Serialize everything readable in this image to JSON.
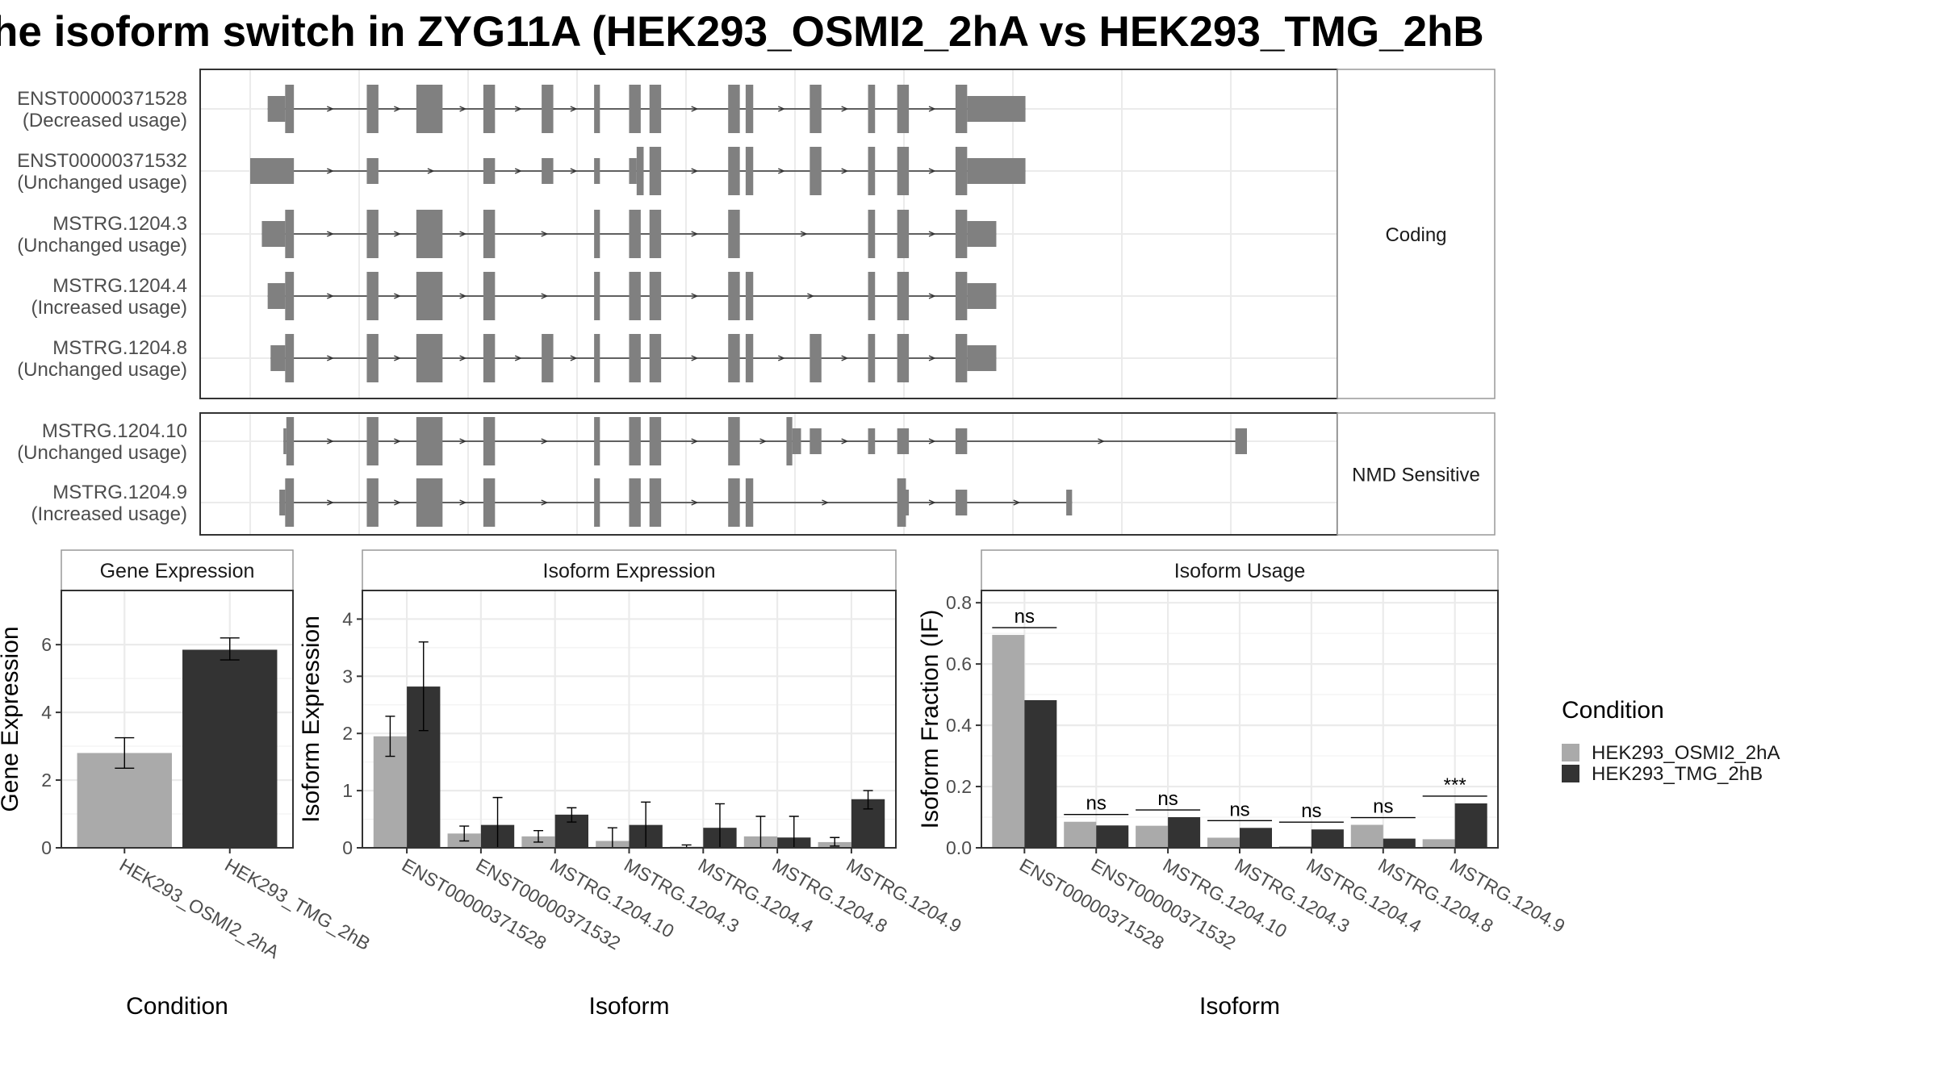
{
  "title": "he isoform switch in ZYG11A (HEK293_OSMI2_2hA vs HEK293_TMG_2hB",
  "colors": {
    "exon": "#808080",
    "intron": "#333333",
    "condA": "#aaaaaa",
    "condB": "#333333",
    "grid": "#ebebeb",
    "panel_border": "#333333",
    "strip_border": "#999999",
    "text": "#4d4d4d",
    "title": "#000000"
  },
  "structure": {
    "genomic_units": {
      "min": 0,
      "max": 180
    },
    "sections": [
      {
        "label": "Coding",
        "transcripts": [
          {
            "id": "ENST00000371528",
            "usage": "(Decreased usage)",
            "exons": [
              [
                3,
                6,
                "u"
              ],
              [
                6,
                7.5,
                "c"
              ],
              [
                20,
                22,
                "c"
              ],
              [
                28.5,
                33,
                "c"
              ],
              [
                40,
                42,
                "c"
              ],
              [
                50,
                52,
                "c"
              ],
              [
                59,
                60,
                "c"
              ],
              [
                65,
                67,
                "c"
              ],
              [
                68.5,
                70.5,
                "c"
              ],
              [
                82,
                84,
                "c"
              ],
              [
                85,
                86.3,
                "c"
              ],
              [
                96,
                98,
                "c"
              ],
              [
                106,
                107.2,
                "c"
              ],
              [
                111,
                113,
                "c"
              ],
              [
                121,
                123,
                "c"
              ],
              [
                123,
                133,
                "u"
              ]
            ]
          },
          {
            "id": "ENST00000371532",
            "usage": "(Unchanged usage)",
            "exons": [
              [
                0,
                7.5,
                "u"
              ],
              [
                20,
                22,
                "u"
              ],
              [
                40,
                42,
                "u"
              ],
              [
                50,
                52,
                "u"
              ],
              [
                59,
                60,
                "u"
              ],
              [
                65,
                66.3,
                "u"
              ],
              [
                66.3,
                67.5,
                "c"
              ],
              [
                68.5,
                70.5,
                "c"
              ],
              [
                82,
                84,
                "c"
              ],
              [
                85,
                86.3,
                "c"
              ],
              [
                96,
                98,
                "c"
              ],
              [
                106,
                107.2,
                "c"
              ],
              [
                111,
                113,
                "c"
              ],
              [
                121,
                123,
                "c"
              ],
              [
                123,
                133,
                "u"
              ]
            ]
          },
          {
            "id": "MSTRG.1204.3",
            "usage": "(Unchanged usage)",
            "exons": [
              [
                2,
                6,
                "u"
              ],
              [
                6,
                7.5,
                "c"
              ],
              [
                20,
                22,
                "c"
              ],
              [
                28.5,
                33,
                "c"
              ],
              [
                40,
                42,
                "c"
              ],
              [
                59,
                60,
                "c"
              ],
              [
                65,
                67,
                "c"
              ],
              [
                68.5,
                70.5,
                "c"
              ],
              [
                82,
                84,
                "c"
              ],
              [
                106,
                107.2,
                "c"
              ],
              [
                111,
                113,
                "c"
              ],
              [
                121,
                123,
                "c"
              ],
              [
                123,
                128,
                "u"
              ]
            ]
          },
          {
            "id": "MSTRG.1204.4",
            "usage": "(Increased usage)",
            "exons": [
              [
                3,
                6,
                "u"
              ],
              [
                6,
                7.5,
                "c"
              ],
              [
                20,
                22,
                "c"
              ],
              [
                28.5,
                33,
                "c"
              ],
              [
                40,
                42,
                "c"
              ],
              [
                59,
                60,
                "c"
              ],
              [
                65,
                67,
                "c"
              ],
              [
                68.5,
                70.5,
                "c"
              ],
              [
                82,
                84,
                "c"
              ],
              [
                85,
                86.3,
                "c"
              ],
              [
                106,
                107.2,
                "c"
              ],
              [
                111,
                113,
                "c"
              ],
              [
                121,
                123,
                "c"
              ],
              [
                123,
                128,
                "u"
              ]
            ]
          },
          {
            "id": "MSTRG.1204.8",
            "usage": "(Unchanged usage)",
            "exons": [
              [
                3.5,
                6,
                "u"
              ],
              [
                6,
                7.5,
                "c"
              ],
              [
                20,
                22,
                "c"
              ],
              [
                28.5,
                33,
                "c"
              ],
              [
                40,
                42,
                "c"
              ],
              [
                50,
                52,
                "c"
              ],
              [
                59,
                60,
                "c"
              ],
              [
                65,
                67,
                "c"
              ],
              [
                68.5,
                70.5,
                "c"
              ],
              [
                82,
                84,
                "c"
              ],
              [
                85,
                86.3,
                "c"
              ],
              [
                96,
                98,
                "c"
              ],
              [
                106,
                107.2,
                "c"
              ],
              [
                111,
                113,
                "c"
              ],
              [
                121,
                123,
                "c"
              ],
              [
                123,
                128,
                "u"
              ]
            ]
          }
        ]
      },
      {
        "label": "NMD Sensitive",
        "transcripts": [
          {
            "id": "MSTRG.1204.10",
            "usage": "(Unchanged usage)",
            "exons": [
              [
                5.7,
                6.2,
                "u"
              ],
              [
                6.2,
                7.5,
                "c"
              ],
              [
                20,
                22,
                "c"
              ],
              [
                28.5,
                33,
                "c"
              ],
              [
                40,
                42,
                "c"
              ],
              [
                59,
                60,
                "c"
              ],
              [
                65,
                67,
                "c"
              ],
              [
                68.5,
                70.5,
                "c"
              ],
              [
                82,
                84,
                "c"
              ],
              [
                92,
                93,
                "c"
              ],
              [
                93,
                94.5,
                "u"
              ],
              [
                96,
                98,
                "u"
              ],
              [
                106,
                107.2,
                "u"
              ],
              [
                111,
                113,
                "u"
              ],
              [
                121,
                123,
                "u"
              ],
              [
                169,
                171,
                "u"
              ]
            ]
          },
          {
            "id": "MSTRG.1204.9",
            "usage": "(Increased usage)",
            "exons": [
              [
                5,
                6,
                "u"
              ],
              [
                6,
                7.5,
                "c"
              ],
              [
                20,
                22,
                "c"
              ],
              [
                28.5,
                33,
                "c"
              ],
              [
                40,
                42,
                "c"
              ],
              [
                59,
                60,
                "c"
              ],
              [
                65,
                67,
                "c"
              ],
              [
                68.5,
                70.5,
                "c"
              ],
              [
                82,
                84,
                "c"
              ],
              [
                85,
                86.3,
                "c"
              ],
              [
                111,
                112.5,
                "c"
              ],
              [
                112.5,
                113,
                "u"
              ],
              [
                121,
                123,
                "u"
              ],
              [
                140,
                141,
                "u"
              ]
            ]
          }
        ]
      }
    ]
  },
  "legend": {
    "title": "Condition",
    "entries": [
      "HEK293_OSMI2_2hA",
      "HEK293_TMG_2hB"
    ]
  },
  "chart_data": [
    {
      "type": "bar",
      "title": "Gene Expression",
      "xlabel": "Condition",
      "ylabel": "Gene Expression",
      "ylim": [
        0,
        7.6
      ],
      "yticks": [
        0,
        2,
        4,
        6
      ],
      "categories": [
        "HEK293_OSMI2_2hA",
        "HEK293_TMG_2hB"
      ],
      "values": [
        2.8,
        5.85
      ],
      "errors": [
        [
          2.35,
          3.25
        ],
        [
          5.55,
          6.2
        ]
      ]
    },
    {
      "type": "bar",
      "title": "Isoform Expression",
      "xlabel": "Isoform",
      "ylabel": "Isoform Expression",
      "ylim": [
        0,
        4.5
      ],
      "yticks": [
        0,
        1,
        2,
        3,
        4
      ],
      "categories": [
        "ENST00000371528",
        "ENST00000371532",
        "MSTRG.1204.10",
        "MSTRG.1204.3",
        "MSTRG.1204.4",
        "MSTRG.1204.8",
        "MSTRG.1204.9"
      ],
      "series": [
        {
          "name": "HEK293_OSMI2_2hA",
          "values": [
            1.95,
            0.25,
            0.2,
            0.12,
            0.02,
            0.2,
            0.1
          ],
          "errors": [
            [
              1.6,
              2.3
            ],
            [
              0.12,
              0.38
            ],
            [
              0.1,
              0.3
            ],
            [
              0.0,
              0.35
            ],
            [
              0.0,
              0.05
            ],
            [
              0.0,
              0.55
            ],
            [
              0.03,
              0.18
            ]
          ]
        },
        {
          "name": "HEK293_TMG_2hB",
          "values": [
            2.82,
            0.4,
            0.58,
            0.4,
            0.35,
            0.18,
            0.85
          ],
          "errors": [
            [
              2.05,
              3.6
            ],
            [
              0.0,
              0.88
            ],
            [
              0.45,
              0.7
            ],
            [
              0.0,
              0.8
            ],
            [
              0.0,
              0.77
            ],
            [
              0.0,
              0.55
            ],
            [
              0.68,
              1.0
            ]
          ]
        }
      ]
    },
    {
      "type": "bar",
      "title": "Isoform Usage",
      "xlabel": "Isoform",
      "ylabel": "Isoform Fraction (IF)",
      "ylim": [
        0,
        0.84
      ],
      "yticks": [
        "0.0",
        "0.2",
        "0.4",
        "0.6",
        "0.8"
      ],
      "categories": [
        "ENST00000371528",
        "ENST00000371532",
        "MSTRG.1204.10",
        "MSTRG.1204.3",
        "MSTRG.1204.4",
        "MSTRG.1204.8",
        "MSTRG.1204.9"
      ],
      "series": [
        {
          "name": "HEK293_OSMI2_2hA",
          "values": [
            0.695,
            0.085,
            0.072,
            0.033,
            0.005,
            0.075,
            0.028
          ]
        },
        {
          "name": "HEK293_TMG_2hB",
          "values": [
            0.482,
            0.073,
            0.1,
            0.065,
            0.06,
            0.03,
            0.145
          ]
        }
      ],
      "significance": [
        "ns",
        "ns",
        "ns",
        "ns",
        "ns",
        "ns",
        "***"
      ]
    }
  ]
}
